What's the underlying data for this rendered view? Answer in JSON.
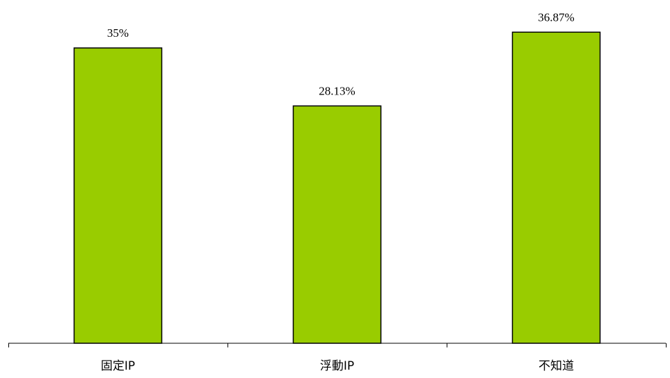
{
  "chart_data": {
    "type": "bar",
    "title": "",
    "xlabel": "",
    "ylabel": "",
    "categories": [
      "固定IP",
      "浮動IP",
      "不知道"
    ],
    "series": [
      {
        "values": [
          35,
          28.13,
          36.87
        ]
      }
    ],
    "data_labels": [
      "35%",
      "28.13%",
      "36.87%"
    ],
    "unit": "%",
    "ylim": [
      0,
      40
    ],
    "grid": false,
    "legend": "none",
    "bar_color": "#99CC00",
    "bar_edge_color": "#000000"
  }
}
